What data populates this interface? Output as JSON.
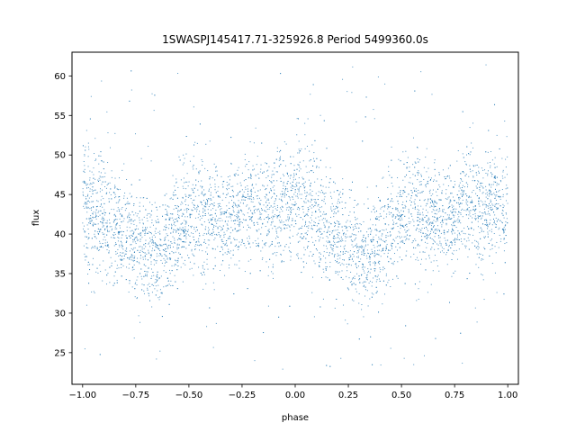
{
  "chart_data": {
    "type": "scatter",
    "title": "1SWASPJ145417.71-325926.8 Period 5499360.0s",
    "xlabel": "phase",
    "ylabel": "flux",
    "xlim": [
      -1.05,
      1.05
    ],
    "ylim": [
      21,
      63
    ],
    "grid": false,
    "legend": "none",
    "x_ticks": [
      -1.0,
      -0.75,
      -0.5,
      -0.25,
      0.0,
      0.25,
      0.5,
      0.75,
      1.0
    ],
    "x_tick_labels": [
      "−1.00",
      "−0.75",
      "−0.50",
      "−0.25",
      "0.00",
      "0.25",
      "0.50",
      "0.75",
      "1.00"
    ],
    "y_ticks": [
      25,
      30,
      35,
      40,
      45,
      50,
      55,
      60
    ],
    "y_tick_labels": [
      "25",
      "30",
      "35",
      "40",
      "45",
      "50",
      "55",
      "60"
    ],
    "marker_color": "#1f77b4",
    "series": [
      {
        "phase_range": [
          -1.0,
          1.0
        ],
        "period_in_phase": 1.0,
        "profile": {
          "phase": [
            0.0,
            0.05,
            0.1,
            0.15,
            0.2,
            0.25,
            0.3,
            0.35,
            0.4,
            0.45,
            0.5,
            0.55,
            0.6,
            0.65,
            0.7,
            0.75,
            0.8,
            0.85,
            0.9,
            0.95,
            1.0
          ],
          "center": [
            43,
            43,
            42,
            41,
            40,
            39,
            38,
            38,
            39,
            41,
            42,
            43,
            42,
            42,
            42,
            42,
            44,
            43,
            43,
            44,
            43
          ],
          "lower": [
            35,
            35,
            34,
            34,
            34,
            33,
            32,
            32,
            33,
            34,
            36,
            36,
            36,
            36,
            36,
            37,
            38,
            37,
            37,
            38,
            36
          ],
          "upper": [
            52,
            52,
            51,
            49,
            47,
            47,
            46,
            46,
            47,
            49,
            49,
            53,
            51,
            49,
            49,
            50,
            53,
            52,
            52,
            51,
            50
          ]
        },
        "outlier_range": [
          22.8,
          61.5
        ]
      }
    ]
  }
}
